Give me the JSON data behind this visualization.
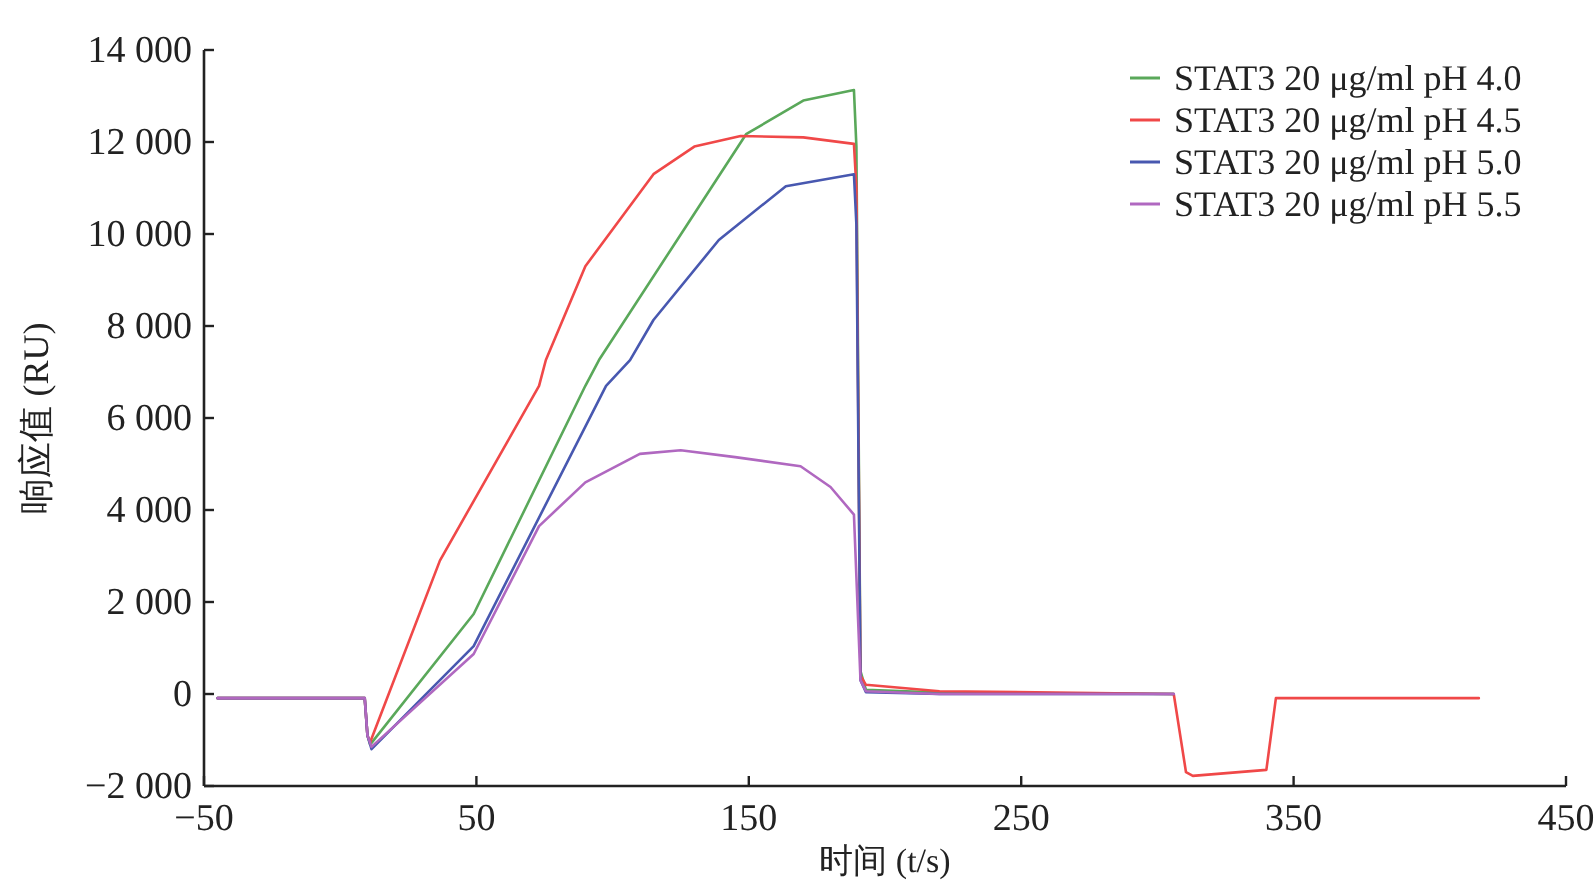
{
  "chart_data": {
    "type": "line",
    "xlabel": "时间 (t/s)",
    "ylabel": "响应值 (RU)",
    "xlim": [
      -50,
      450
    ],
    "ylim": [
      -2000,
      14000
    ],
    "xticks": [
      {
        "value": -50,
        "label": "−50"
      },
      50,
      150,
      250,
      350,
      450
    ],
    "yticks": [
      {
        "value": -2000,
        "label": "−2 000"
      },
      0,
      {
        "value": 2000,
        "label": "2 000"
      },
      {
        "value": 4000,
        "label": "4 000"
      },
      {
        "value": 6000,
        "label": "6 000"
      },
      {
        "value": 8000,
        "label": "8 000"
      },
      {
        "value": 10000,
        "label": "10 000"
      },
      {
        "value": 12000,
        "label": "12 000"
      },
      {
        "value": 14000,
        "label": "14 000"
      }
    ],
    "legend": "top right",
    "series": [
      {
        "name": "STAT3 20 μg/ml pH 4.0",
        "color": "#5aa85a",
        "x": [
          -45,
          9,
          10,
          11,
          49,
          90,
          95,
          127,
          149,
          170,
          188.6,
          189.5,
          191,
          193,
          220,
          306
        ],
        "values": [
          -90,
          -90,
          -900,
          -1100,
          1740,
          6700,
          7260,
          10170,
          12170,
          12900,
          13130,
          11900,
          500,
          90,
          30,
          0
        ]
      },
      {
        "name": "STAT3 20 μg/ml pH 4.5",
        "color": "#f04848",
        "x": [
          -45,
          9,
          10,
          11,
          36.6,
          73,
          75.5,
          90,
          115,
          130,
          147,
          170,
          188.6,
          189.5,
          191,
          193,
          220,
          306,
          310.5,
          313,
          340,
          343.5,
          380,
          418
        ],
        "values": [
          -90,
          -90,
          -900,
          -1050,
          2900,
          6700,
          7260,
          9300,
          11300,
          11900,
          12130,
          12100,
          11960,
          11000,
          400,
          200,
          60,
          0,
          -1700,
          -1780,
          -1650,
          -90,
          -90,
          -90
        ]
      },
      {
        "name": "STAT3 20 μg/ml pH 5.0",
        "color": "#4858b0",
        "x": [
          -45,
          9,
          10,
          11.5,
          49,
          97.6,
          106.4,
          115,
          139,
          163.6,
          188.6,
          189.5,
          191,
          193,
          220,
          306
        ],
        "values": [
          -90,
          -90,
          -900,
          -1200,
          1040,
          6700,
          7260,
          8130,
          9870,
          11040,
          11300,
          10200,
          300,
          40,
          0,
          0
        ]
      },
      {
        "name": "STAT3 20 μg/ml pH 5.5",
        "color": "#b068c0",
        "x": [
          -45,
          9,
          10,
          11.5,
          49,
          73,
          90,
          110,
          125,
          145,
          169,
          180,
          188.6,
          191,
          193,
          220,
          306
        ],
        "values": [
          -90,
          -90,
          -900,
          -1150,
          870,
          3650,
          4600,
          5220,
          5300,
          5150,
          4950,
          4500,
          3900,
          300,
          60,
          0,
          0
        ]
      }
    ]
  }
}
